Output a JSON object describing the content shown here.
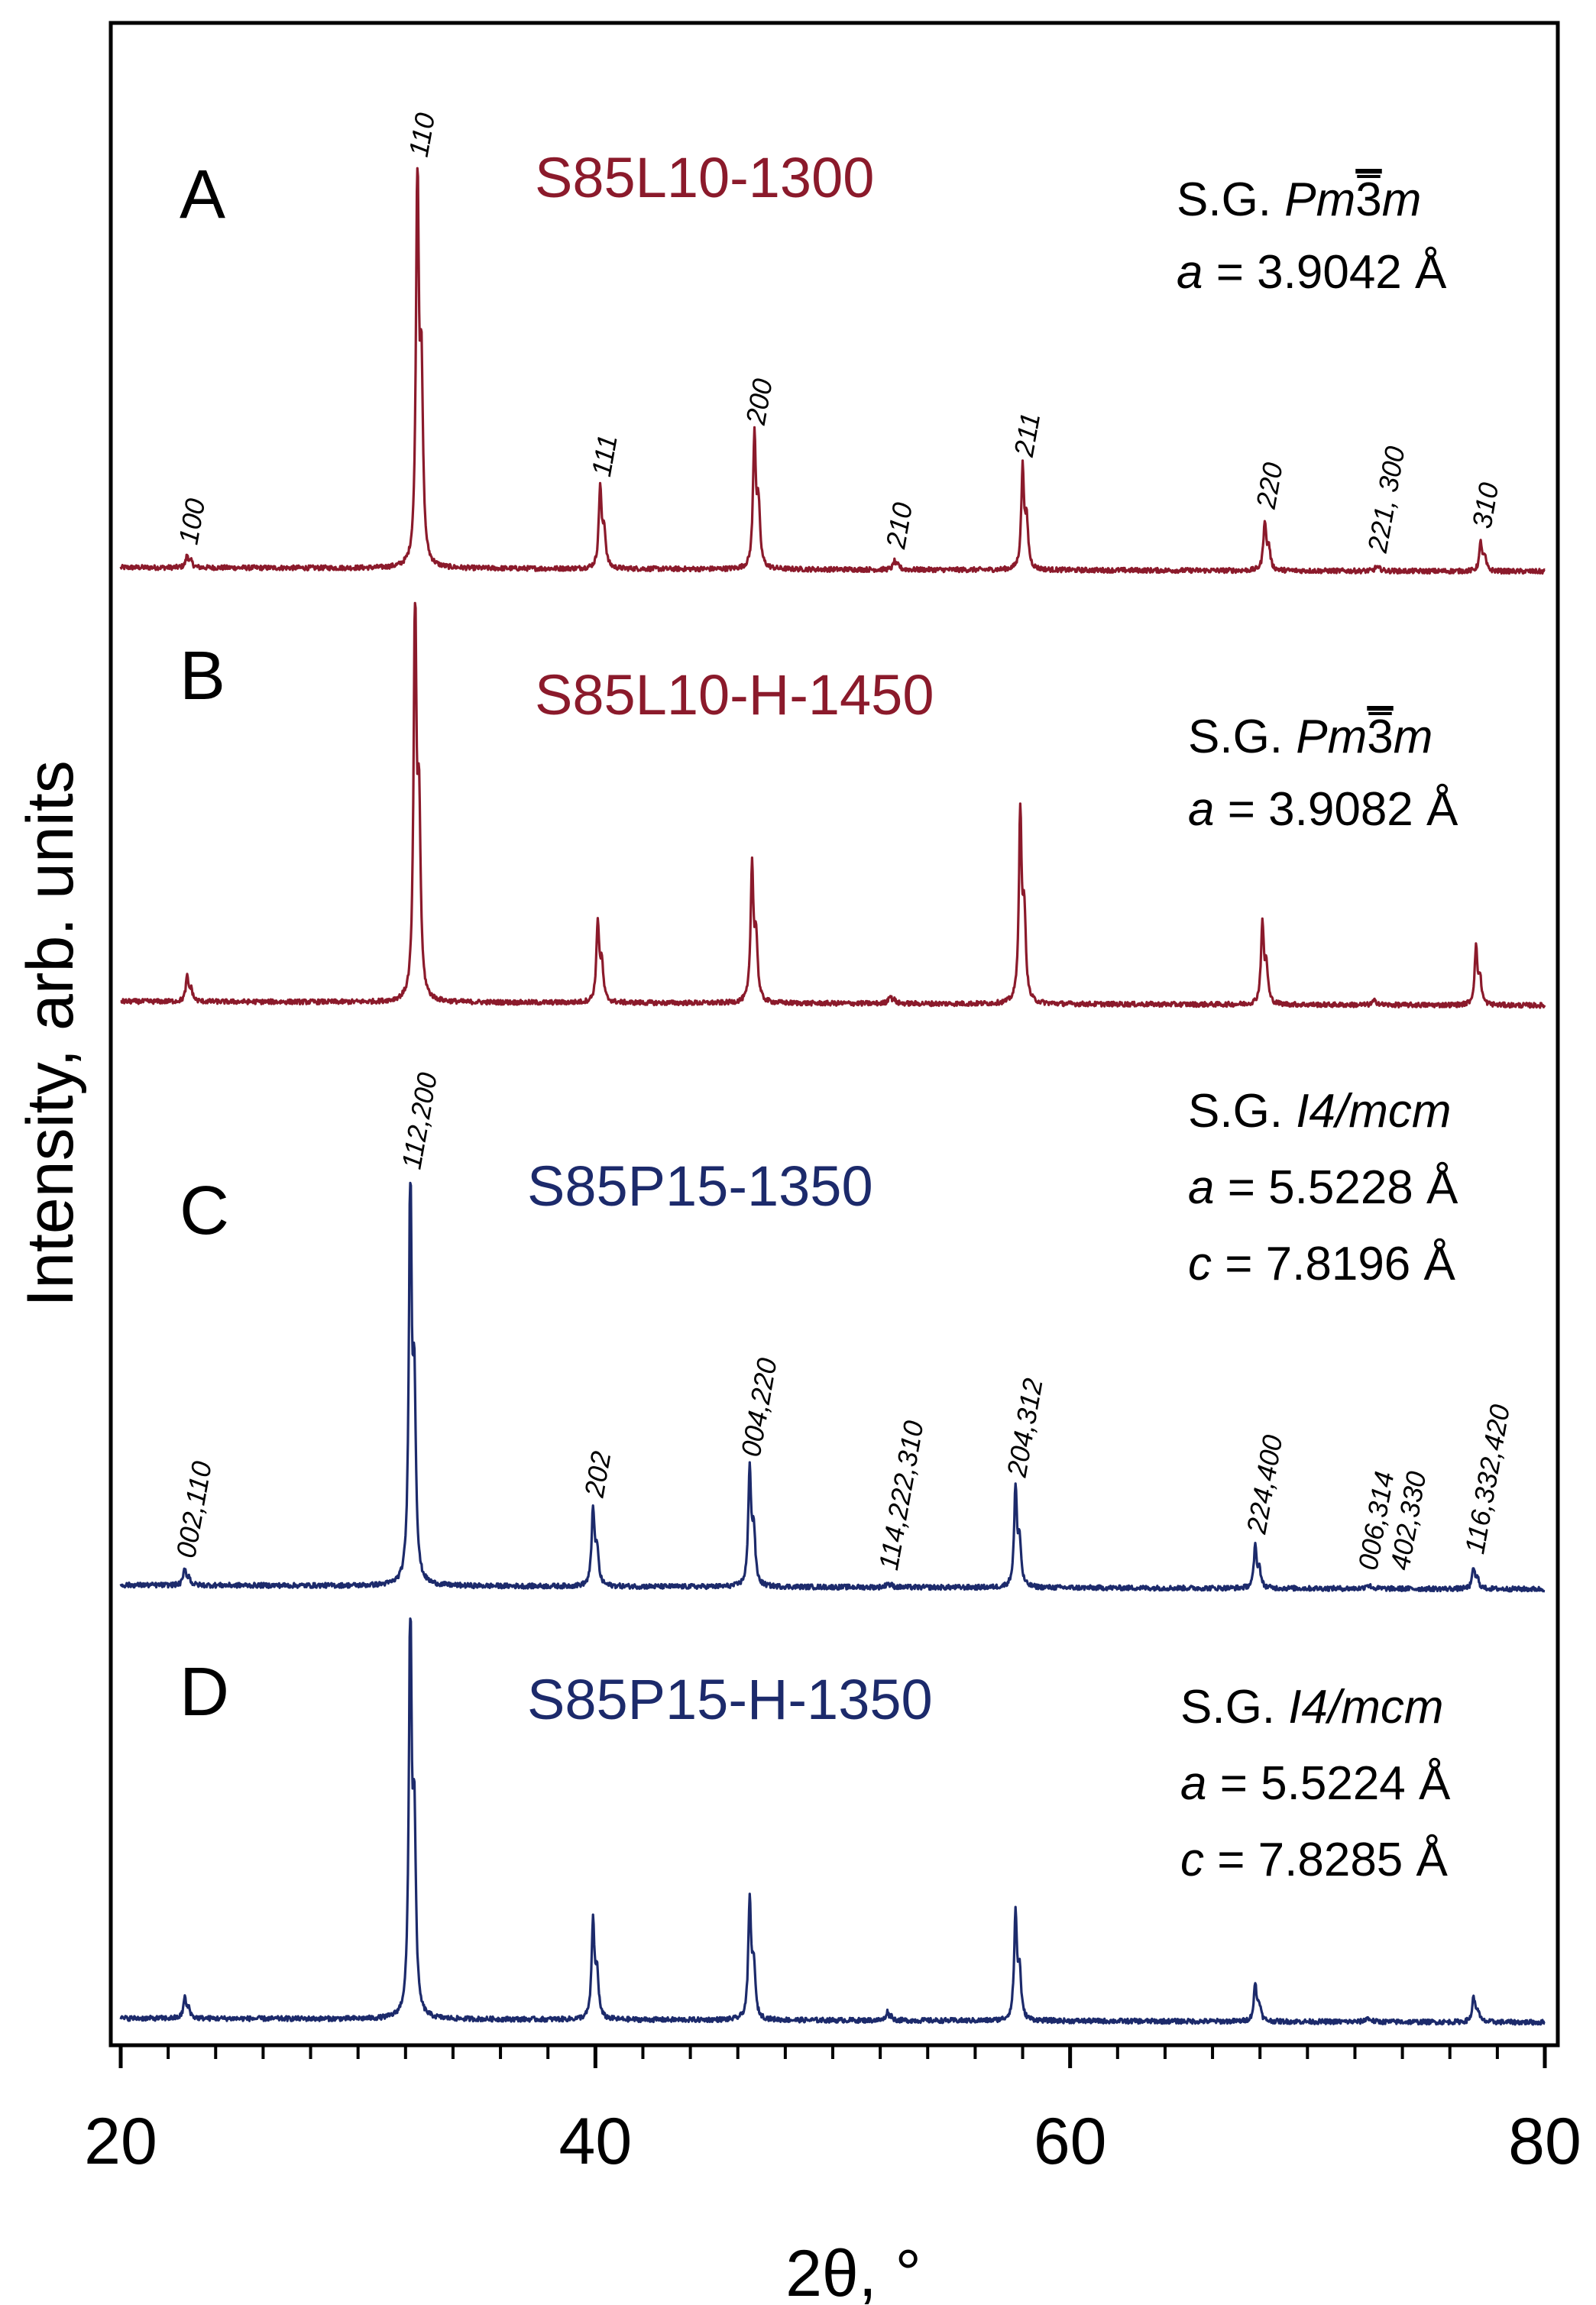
{
  "chart_data": {
    "type": "line",
    "xlabel": "2θ, °",
    "ylabel": "Intensity, arb. units",
    "xlim": [
      20,
      80
    ],
    "x_ticks": [
      "20",
      "40",
      "60",
      "80"
    ],
    "minor_tick_step": 2,
    "series": [
      {
        "id": "A",
        "letter": "A",
        "name": "S85L10-1300",
        "color": "#8b1a2b",
        "sg": {
          "prefix": "S.G. ",
          "group": "Pm3m",
          "overbar_char": "3",
          "params": [
            {
              "sym": "a",
              "value": " = 3.9042 Å"
            }
          ]
        },
        "peaks": [
          {
            "x": 22.8,
            "h": 0.03,
            "label": "100"
          },
          {
            "x": 32.5,
            "h": 1.0,
            "label": "110"
          },
          {
            "x": 40.2,
            "h": 0.2,
            "label": "111"
          },
          {
            "x": 46.7,
            "h": 0.33,
            "label": "200"
          },
          {
            "x": 52.6,
            "h": 0.02,
            "label": "210"
          },
          {
            "x": 58.0,
            "h": 0.25,
            "label": "211"
          },
          {
            "x": 68.2,
            "h": 0.12,
            "label": "220"
          },
          {
            "x": 72.9,
            "h": 0.01,
            "label": "221, 300"
          },
          {
            "x": 77.3,
            "h": 0.07,
            "label": "310"
          }
        ]
      },
      {
        "id": "B",
        "letter": "B",
        "name": "S85L10-H-1450",
        "color": "#8b1a2b",
        "sg": {
          "prefix": "S.G. ",
          "group": "Pm3m",
          "overbar_char": "3",
          "params": [
            {
              "sym": "a",
              "value": " = 3.9082 Å"
            }
          ]
        },
        "peaks": [
          {
            "x": 22.8,
            "h": 0.06
          },
          {
            "x": 32.4,
            "h": 1.0
          },
          {
            "x": 40.1,
            "h": 0.2
          },
          {
            "x": 46.6,
            "h": 0.34
          },
          {
            "x": 52.4,
            "h": 0.02
          },
          {
            "x": 57.9,
            "h": 0.47
          },
          {
            "x": 68.1,
            "h": 0.2
          },
          {
            "x": 72.8,
            "h": 0.01
          },
          {
            "x": 77.1,
            "h": 0.14
          }
        ]
      },
      {
        "id": "C",
        "letter": "C",
        "name": "S85P15-1350",
        "color": "#1c2a6b",
        "sg": {
          "prefix": "S.G. ",
          "group": "I4/mcm",
          "overbar_char": "",
          "params": [
            {
              "sym": "a",
              "value": " = 5.5228 Å"
            },
            {
              "sym": "c",
              "value": " = 7.8196 Å"
            }
          ]
        },
        "peaks": [
          {
            "x": 22.7,
            "h": 0.04,
            "label": "002,110"
          },
          {
            "x": 32.2,
            "h": 1.0,
            "label": "112,200"
          },
          {
            "x": 39.9,
            "h": 0.19,
            "label": "202"
          },
          {
            "x": 46.5,
            "h": 0.29,
            "label": "004,220"
          },
          {
            "x": 52.3,
            "h": 0.01,
            "label": "114,222,310"
          },
          {
            "x": 57.7,
            "h": 0.24,
            "label": "204,312"
          },
          {
            "x": 67.8,
            "h": 0.1,
            "label": "224,400"
          },
          {
            "x": 72.5,
            "h": 0.01,
            "label": "006,314",
            "label2": "402,330"
          },
          {
            "x": 77.0,
            "h": 0.05,
            "label": "116,332,420"
          }
        ]
      },
      {
        "id": "D",
        "letter": "D",
        "name": "S85P15-H-1350",
        "color": "#1c2a6b",
        "sg": {
          "prefix": "S.G. ",
          "group": "I4/mcm",
          "overbar_char": "",
          "params": [
            {
              "sym": "a",
              "value": " = 5.5224 Å"
            },
            {
              "sym": "c",
              "value": " = 7.8285 Å"
            }
          ]
        },
        "peaks": [
          {
            "x": 22.7,
            "h": 0.05
          },
          {
            "x": 32.2,
            "h": 1.0
          },
          {
            "x": 39.9,
            "h": 0.24
          },
          {
            "x": 46.5,
            "h": 0.29
          },
          {
            "x": 52.3,
            "h": 0.02
          },
          {
            "x": 57.7,
            "h": 0.26
          },
          {
            "x": 67.8,
            "h": 0.09
          },
          {
            "x": 72.5,
            "h": 0.01
          },
          {
            "x": 77.0,
            "h": 0.06
          }
        ]
      }
    ]
  }
}
